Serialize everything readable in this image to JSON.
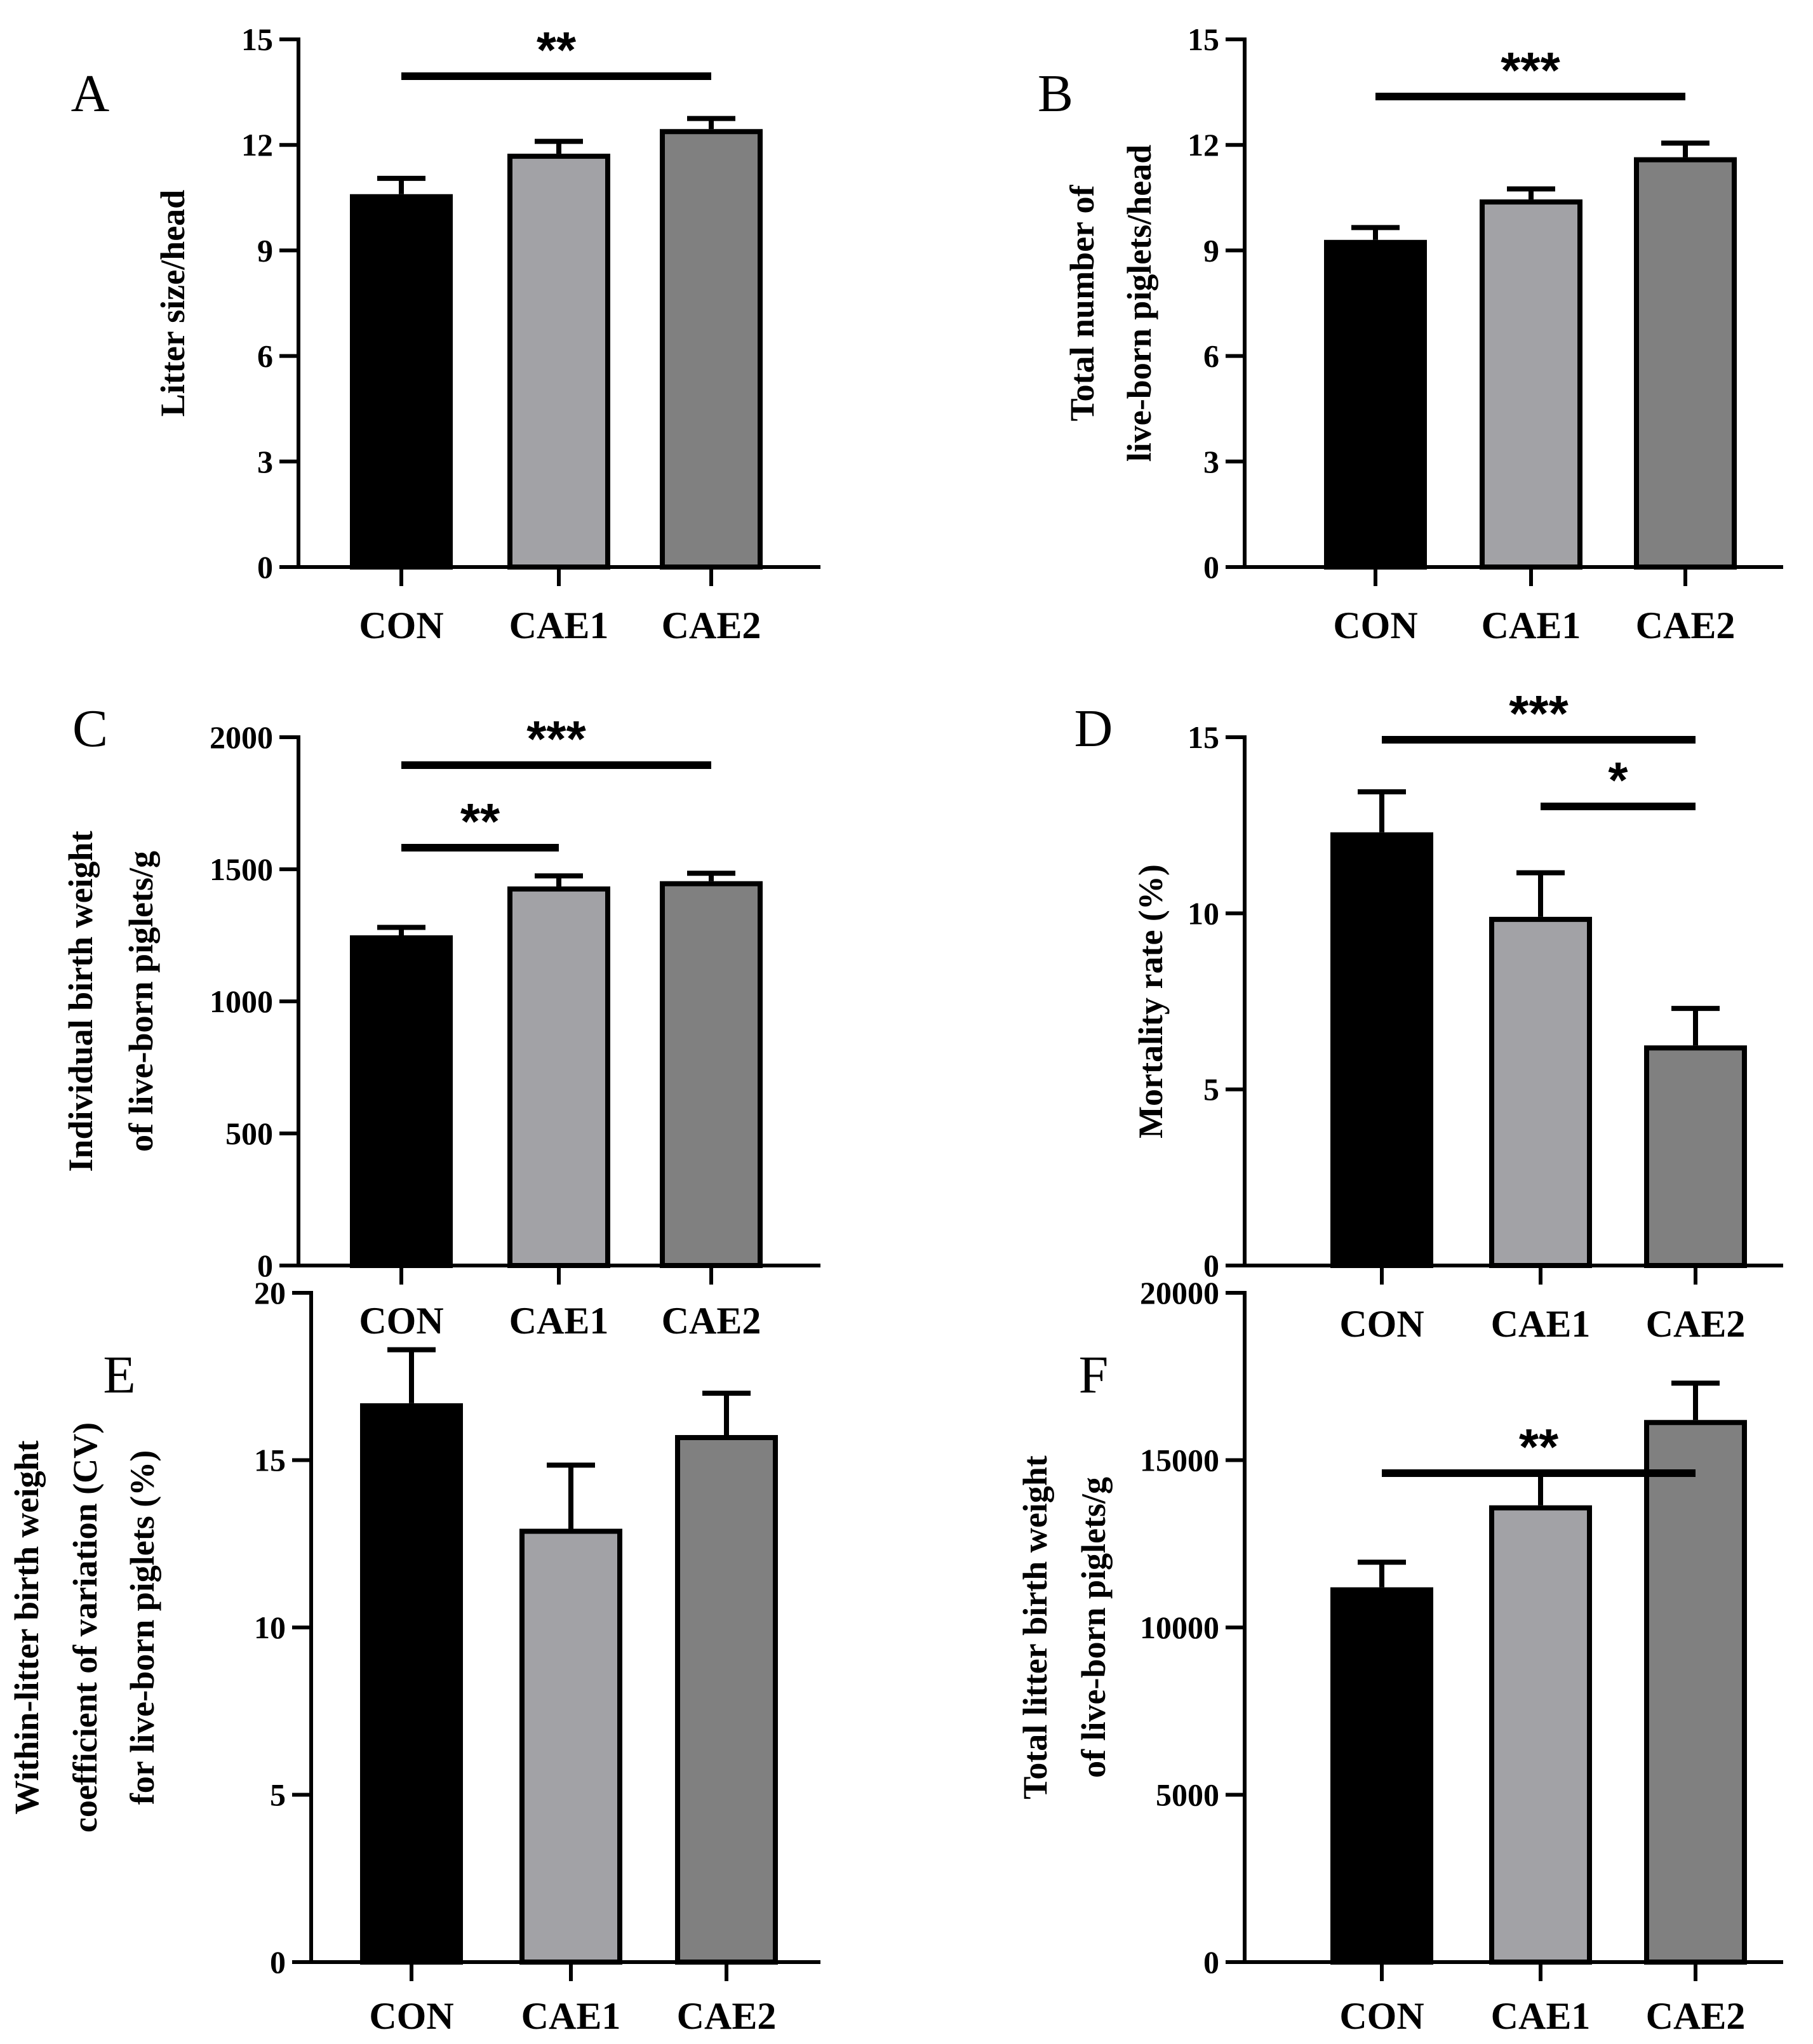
{
  "colors": {
    "CON": "#000000",
    "CAE1": "#a2a2a6",
    "CAE2": "#808080",
    "outline": "#000000"
  },
  "chart_data": [
    {
      "panel": "A",
      "type": "bar",
      "categories": [
        "CON",
        "CAE1",
        "CAE2"
      ],
      "values": [
        10.6,
        11.75,
        12.45
      ],
      "errors": [
        0.45,
        0.35,
        0.3
      ],
      "ylabel": [
        "Litter size/head"
      ],
      "ylim": [
        0,
        15
      ],
      "yticks": [
        0,
        3,
        6,
        9,
        12,
        15
      ],
      "significance": [
        {
          "from": 0,
          "to": 2,
          "label": "**"
        }
      ]
    },
    {
      "panel": "B",
      "type": "bar",
      "categories": [
        "CON",
        "CAE1",
        "CAE2"
      ],
      "values": [
        9.3,
        10.45,
        11.65
      ],
      "errors": [
        0.35,
        0.3,
        0.4
      ],
      "ylabel": [
        "Total number of",
        "live-born piglets/head"
      ],
      "ylim": [
        0,
        15
      ],
      "yticks": [
        0,
        3,
        6,
        9,
        12,
        15
      ],
      "significance": [
        {
          "from": 0,
          "to": 2,
          "label": "***"
        }
      ]
    },
    {
      "panel": "C",
      "type": "bar",
      "categories": [
        "CON",
        "CAE1",
        "CAE2"
      ],
      "values": [
        1250,
        1435,
        1455
      ],
      "errors": [
        30,
        40,
        30
      ],
      "ylabel": [
        "Individual birth weight",
        "of live-born piglets/g"
      ],
      "ylim": [
        0,
        2000
      ],
      "yticks": [
        0,
        500,
        1000,
        1500,
        2000
      ],
      "significance": [
        {
          "from": 0,
          "to": 2,
          "label": "***"
        },
        {
          "from": 0,
          "to": 1,
          "label": "**"
        }
      ]
    },
    {
      "panel": "D",
      "type": "bar",
      "categories": [
        "CON",
        "CAE1",
        "CAE2"
      ],
      "values": [
        12.3,
        9.9,
        6.25
      ],
      "errors": [
        1.15,
        1.25,
        1.05
      ],
      "ylabel": [
        "Mortality rate (%)"
      ],
      "ylim": [
        0,
        15
      ],
      "yticks": [
        0,
        5,
        10,
        15
      ],
      "significance": [
        {
          "from": 0,
          "to": 2,
          "label": "***"
        },
        {
          "from": 1,
          "to": 2,
          "label": "*"
        }
      ]
    },
    {
      "panel": "E",
      "type": "bar",
      "categories": [
        "CON",
        "CAE1",
        "CAE2"
      ],
      "values": [
        16.7,
        12.95,
        15.75
      ],
      "errors": [
        1.6,
        1.9,
        1.25
      ],
      "ylabel": [
        "Within-litter birth weight",
        "coefficient of variation (CV)",
        "for live-born piglets (%)"
      ],
      "ylim": [
        0,
        20
      ],
      "yticks": [
        0,
        5,
        10,
        15,
        20
      ],
      "significance": []
    },
    {
      "panel": "F",
      "type": "bar",
      "categories": [
        "CON",
        "CAE1",
        "CAE2"
      ],
      "values": [
        11200,
        13650,
        16200
      ],
      "errors": [
        750,
        950,
        1100
      ],
      "ylabel": [
        "Total litter birth weight",
        "of live-born piglets/g"
      ],
      "ylim": [
        0,
        20000
      ],
      "yticks": [
        0,
        5000,
        10000,
        15000,
        20000
      ],
      "significance": [
        {
          "from": 0,
          "to": 2,
          "label": "**"
        }
      ]
    }
  ]
}
